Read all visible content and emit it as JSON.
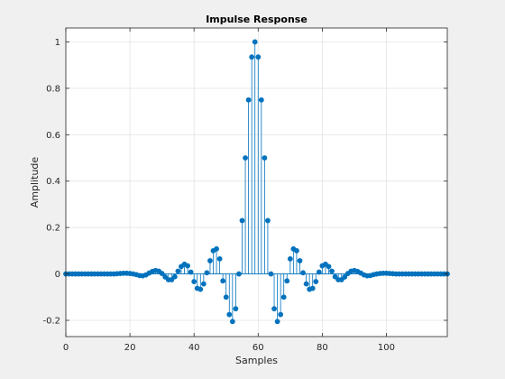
{
  "chart_data": {
    "type": "stem",
    "title": "Impulse Response",
    "xlabel": "Samples",
    "ylabel": "Amplitude",
    "xlim": [
      0,
      119
    ],
    "ylim": [
      -0.27,
      1.06
    ],
    "xticks": [
      0,
      20,
      40,
      60,
      80,
      100
    ],
    "xtick_labels": [
      "0",
      "20",
      "40",
      "60",
      "80",
      "100"
    ],
    "yticks": [
      -0.2,
      0,
      0.2,
      0.4,
      0.6,
      0.8,
      1
    ],
    "ytick_labels": [
      "-0.2",
      "0",
      "0.2",
      "0.4",
      "0.6",
      "0.8",
      "1"
    ],
    "grid": true,
    "series": [
      {
        "color": "#0072bd",
        "x": [
          0,
          1,
          2,
          3,
          4,
          5,
          6,
          7,
          8,
          9,
          10,
          11,
          12,
          13,
          14,
          15,
          16,
          17,
          18,
          19,
          20,
          21,
          22,
          23,
          24,
          25,
          26,
          27,
          28,
          29,
          30,
          31,
          32,
          33,
          34,
          35,
          36,
          37,
          38,
          39,
          40,
          41,
          42,
          43,
          44,
          45,
          46,
          47,
          48,
          49,
          50,
          51,
          52,
          53,
          54,
          55,
          56,
          57,
          58,
          59,
          60,
          61,
          62,
          63,
          64,
          65,
          66,
          67,
          68,
          69,
          70,
          71,
          72,
          73,
          74,
          75,
          76,
          77,
          78,
          79,
          80,
          81,
          82,
          83,
          84,
          85,
          86,
          87,
          88,
          89,
          90,
          91,
          92,
          93,
          94,
          95,
          96,
          97,
          98,
          99,
          100,
          101,
          102,
          103,
          104,
          105,
          106,
          107,
          108,
          109,
          110,
          111,
          112,
          113,
          114,
          115,
          116,
          117,
          118,
          119
        ],
        "values": [
          0,
          0,
          0,
          0,
          0,
          0,
          0,
          0,
          0,
          0,
          0,
          0,
          0,
          0,
          0,
          0,
          0.001,
          0.002,
          0.003,
          0.003,
          0.002,
          0,
          -0.003,
          -0.007,
          -0.008,
          -0.004,
          0.004,
          0.011,
          0.015,
          0.012,
          0.002,
          -0.013,
          -0.025,
          -0.025,
          -0.012,
          0.012,
          0.032,
          0.042,
          0.035,
          0.008,
          -0.033,
          -0.062,
          -0.066,
          -0.043,
          0.005,
          0.057,
          0.1,
          0.108,
          0.065,
          -0.03,
          -0.1,
          -0.175,
          -0.205,
          -0.15,
          0,
          0.23,
          0.5,
          0.75,
          0.935,
          1,
          0.935,
          0.75,
          0.5,
          0.23,
          0,
          -0.15,
          -0.205,
          -0.175,
          -0.1,
          -0.03,
          0.065,
          0.108,
          0.1,
          0.057,
          0.005,
          -0.043,
          -0.066,
          -0.062,
          -0.033,
          0.008,
          0.035,
          0.042,
          0.032,
          0.012,
          -0.012,
          -0.025,
          -0.025,
          -0.013,
          0.002,
          0.012,
          0.015,
          0.011,
          0.004,
          -0.004,
          -0.008,
          -0.007,
          -0.003,
          0,
          0.002,
          0.003,
          0.003,
          0.002,
          0.001,
          0,
          0,
          0,
          0,
          0,
          0,
          0,
          0,
          0,
          0,
          0,
          0,
          0,
          0,
          0,
          0,
          0
        ]
      }
    ]
  }
}
